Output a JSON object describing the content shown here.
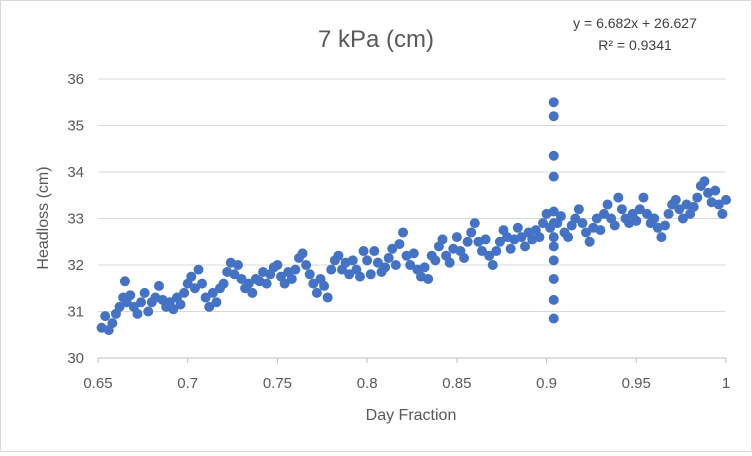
{
  "chart_data": {
    "type": "scatter",
    "title": "7 kPa (cm)",
    "xlabel": "Day Fraction",
    "ylabel": "Headloss (cm)",
    "xlim": [
      0.65,
      1
    ],
    "ylim": [
      30,
      36
    ],
    "x_ticks": [
      "0.65",
      "0.7",
      "0.75",
      "0.8",
      "0.85",
      "0.9",
      "0.95",
      "1"
    ],
    "y_ticks": [
      "30",
      "31",
      "32",
      "33",
      "34",
      "35",
      "36"
    ],
    "grid": "horizontal",
    "legend": "none",
    "marker_color": "#4472C4",
    "trendline_equation": "y = 6.682x + 26.627",
    "trendline_r2": "R² = 0.9341",
    "series": [
      {
        "points": [
          [
            0.652,
            30.65
          ],
          [
            0.654,
            30.9
          ],
          [
            0.656,
            30.6
          ],
          [
            0.658,
            30.75
          ],
          [
            0.66,
            30.95
          ],
          [
            0.662,
            31.1
          ],
          [
            0.664,
            31.3
          ],
          [
            0.665,
            31.65
          ],
          [
            0.666,
            31.2
          ],
          [
            0.668,
            31.35
          ],
          [
            0.67,
            31.1
          ],
          [
            0.672,
            30.95
          ],
          [
            0.674,
            31.2
          ],
          [
            0.676,
            31.4
          ],
          [
            0.678,
            31.0
          ],
          [
            0.68,
            31.2
          ],
          [
            0.682,
            31.3
          ],
          [
            0.684,
            31.55
          ],
          [
            0.686,
            31.25
          ],
          [
            0.688,
            31.1
          ],
          [
            0.69,
            31.2
          ],
          [
            0.692,
            31.05
          ],
          [
            0.694,
            31.3
          ],
          [
            0.696,
            31.15
          ],
          [
            0.698,
            31.4
          ],
          [
            0.7,
            31.6
          ],
          [
            0.702,
            31.75
          ],
          [
            0.704,
            31.5
          ],
          [
            0.706,
            31.9
          ],
          [
            0.708,
            31.6
          ],
          [
            0.71,
            31.3
          ],
          [
            0.712,
            31.1
          ],
          [
            0.714,
            31.4
          ],
          [
            0.716,
            31.2
          ],
          [
            0.718,
            31.5
          ],
          [
            0.72,
            31.6
          ],
          [
            0.722,
            31.85
          ],
          [
            0.724,
            32.05
          ],
          [
            0.726,
            31.8
          ],
          [
            0.728,
            32.0
          ],
          [
            0.73,
            31.7
          ],
          [
            0.732,
            31.5
          ],
          [
            0.734,
            31.6
          ],
          [
            0.736,
            31.4
          ],
          [
            0.738,
            31.7
          ],
          [
            0.74,
            31.65
          ],
          [
            0.742,
            31.85
          ],
          [
            0.744,
            31.6
          ],
          [
            0.746,
            31.8
          ],
          [
            0.748,
            31.95
          ],
          [
            0.75,
            32.0
          ],
          [
            0.752,
            31.75
          ],
          [
            0.754,
            31.6
          ],
          [
            0.756,
            31.85
          ],
          [
            0.758,
            31.7
          ],
          [
            0.76,
            31.9
          ],
          [
            0.762,
            32.15
          ],
          [
            0.764,
            32.25
          ],
          [
            0.766,
            32.0
          ],
          [
            0.768,
            31.8
          ],
          [
            0.77,
            31.6
          ],
          [
            0.772,
            31.4
          ],
          [
            0.774,
            31.7
          ],
          [
            0.776,
            31.55
          ],
          [
            0.778,
            31.3
          ],
          [
            0.78,
            31.9
          ],
          [
            0.782,
            32.1
          ],
          [
            0.784,
            32.2
          ],
          [
            0.786,
            31.9
          ],
          [
            0.788,
            32.05
          ],
          [
            0.79,
            31.8
          ],
          [
            0.792,
            32.1
          ],
          [
            0.794,
            31.9
          ],
          [
            0.796,
            31.75
          ],
          [
            0.798,
            32.3
          ],
          [
            0.8,
            32.1
          ],
          [
            0.802,
            31.8
          ],
          [
            0.804,
            32.3
          ],
          [
            0.806,
            32.05
          ],
          [
            0.808,
            31.85
          ],
          [
            0.81,
            31.95
          ],
          [
            0.812,
            32.15
          ],
          [
            0.814,
            32.35
          ],
          [
            0.816,
            32.0
          ],
          [
            0.818,
            32.45
          ],
          [
            0.82,
            32.7
          ],
          [
            0.822,
            32.2
          ],
          [
            0.824,
            32.0
          ],
          [
            0.826,
            32.25
          ],
          [
            0.828,
            31.9
          ],
          [
            0.83,
            31.75
          ],
          [
            0.832,
            31.95
          ],
          [
            0.834,
            31.7
          ],
          [
            0.836,
            32.2
          ],
          [
            0.838,
            32.1
          ],
          [
            0.84,
            32.4
          ],
          [
            0.842,
            32.55
          ],
          [
            0.844,
            32.2
          ],
          [
            0.846,
            32.05
          ],
          [
            0.848,
            32.35
          ],
          [
            0.85,
            32.6
          ],
          [
            0.852,
            32.3
          ],
          [
            0.854,
            32.15
          ],
          [
            0.856,
            32.5
          ],
          [
            0.858,
            32.7
          ],
          [
            0.86,
            32.9
          ],
          [
            0.862,
            32.5
          ],
          [
            0.864,
            32.3
          ],
          [
            0.866,
            32.55
          ],
          [
            0.868,
            32.2
          ],
          [
            0.87,
            32.0
          ],
          [
            0.872,
            32.3
          ],
          [
            0.874,
            32.5
          ],
          [
            0.876,
            32.75
          ],
          [
            0.878,
            32.6
          ],
          [
            0.88,
            32.35
          ],
          [
            0.882,
            32.55
          ],
          [
            0.884,
            32.8
          ],
          [
            0.886,
            32.6
          ],
          [
            0.888,
            32.4
          ],
          [
            0.89,
            32.7
          ],
          [
            0.892,
            32.55
          ],
          [
            0.894,
            32.75
          ],
          [
            0.896,
            32.6
          ],
          [
            0.898,
            32.9
          ],
          [
            0.9,
            33.1
          ],
          [
            0.902,
            32.8
          ],
          [
            0.904,
            32.6
          ],
          [
            0.904,
            35.5
          ],
          [
            0.904,
            35.2
          ],
          [
            0.904,
            34.35
          ],
          [
            0.904,
            33.9
          ],
          [
            0.904,
            33.15
          ],
          [
            0.904,
            32.9
          ],
          [
            0.904,
            32.4
          ],
          [
            0.904,
            32.1
          ],
          [
            0.904,
            31.7
          ],
          [
            0.904,
            31.25
          ],
          [
            0.904,
            30.85
          ],
          [
            0.906,
            32.9
          ],
          [
            0.908,
            33.05
          ],
          [
            0.91,
            32.7
          ],
          [
            0.912,
            32.6
          ],
          [
            0.914,
            32.85
          ],
          [
            0.916,
            33.0
          ],
          [
            0.918,
            33.2
          ],
          [
            0.92,
            32.9
          ],
          [
            0.922,
            32.7
          ],
          [
            0.924,
            32.5
          ],
          [
            0.926,
            32.8
          ],
          [
            0.928,
            33.0
          ],
          [
            0.93,
            32.75
          ],
          [
            0.932,
            33.1
          ],
          [
            0.934,
            33.3
          ],
          [
            0.936,
            33.0
          ],
          [
            0.938,
            32.85
          ],
          [
            0.94,
            33.45
          ],
          [
            0.942,
            33.2
          ],
          [
            0.944,
            33.0
          ],
          [
            0.946,
            32.9
          ],
          [
            0.948,
            33.1
          ],
          [
            0.95,
            32.95
          ],
          [
            0.952,
            33.2
          ],
          [
            0.954,
            33.45
          ],
          [
            0.956,
            33.1
          ],
          [
            0.958,
            32.9
          ],
          [
            0.96,
            33.0
          ],
          [
            0.962,
            32.8
          ],
          [
            0.964,
            32.6
          ],
          [
            0.966,
            32.85
          ],
          [
            0.968,
            33.1
          ],
          [
            0.97,
            33.3
          ],
          [
            0.972,
            33.4
          ],
          [
            0.974,
            33.2
          ],
          [
            0.976,
            33.0
          ],
          [
            0.978,
            33.3
          ],
          [
            0.98,
            33.1
          ],
          [
            0.982,
            33.25
          ],
          [
            0.984,
            33.45
          ],
          [
            0.986,
            33.7
          ],
          [
            0.988,
            33.8
          ],
          [
            0.99,
            33.55
          ],
          [
            0.992,
            33.35
          ],
          [
            0.994,
            33.6
          ],
          [
            0.996,
            33.3
          ],
          [
            0.998,
            33.1
          ],
          [
            1.0,
            33.4
          ]
        ]
      }
    ]
  }
}
